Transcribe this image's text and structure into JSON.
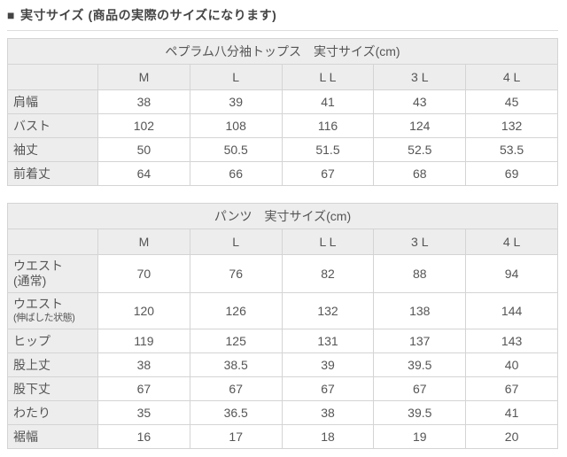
{
  "page": {
    "heading_marker": "■",
    "heading_text": "実寸サイズ (商品の実際のサイズになります)"
  },
  "tables": [
    {
      "title": "ペプラム八分袖トップス　実寸サイズ(cm)",
      "columns": [
        "M",
        "L",
        "L L",
        "3 L",
        "4 L"
      ],
      "rows": [
        {
          "label": "肩幅",
          "values": [
            "38",
            "39",
            "41",
            "43",
            "45"
          ]
        },
        {
          "label": "バスト",
          "values": [
            "102",
            "108",
            "116",
            "124",
            "132"
          ]
        },
        {
          "label": "袖丈",
          "values": [
            "50",
            "50.5",
            "51.5",
            "52.5",
            "53.5"
          ]
        },
        {
          "label": "前着丈",
          "values": [
            "64",
            "66",
            "67",
            "68",
            "69"
          ]
        }
      ]
    },
    {
      "title": "パンツ　実寸サイズ(cm)",
      "columns": [
        "M",
        "L",
        "L L",
        "3 L",
        "4 L"
      ],
      "rows": [
        {
          "label": "ウエスト\n(通常)",
          "values": [
            "70",
            "76",
            "82",
            "88",
            "94"
          ]
        },
        {
          "label": "ウエスト\n(伸ばした状態)",
          "small2": true,
          "values": [
            "120",
            "126",
            "132",
            "138",
            "144"
          ]
        },
        {
          "label": "ヒップ",
          "values": [
            "119",
            "125",
            "131",
            "137",
            "143"
          ]
        },
        {
          "label": "股上丈",
          "values": [
            "38",
            "38.5",
            "39",
            "39.5",
            "40"
          ]
        },
        {
          "label": "股下丈",
          "values": [
            "67",
            "67",
            "67",
            "67",
            "67"
          ]
        },
        {
          "label": "わたり",
          "values": [
            "35",
            "36.5",
            "38",
            "39.5",
            "41"
          ]
        },
        {
          "label": "裾幅",
          "values": [
            "16",
            "17",
            "18",
            "19",
            "20"
          ]
        }
      ]
    }
  ],
  "colors": {
    "header_bg": "#ededed",
    "border": "#d4d4d4",
    "text": "#555555",
    "heading_text": "#444444"
  }
}
